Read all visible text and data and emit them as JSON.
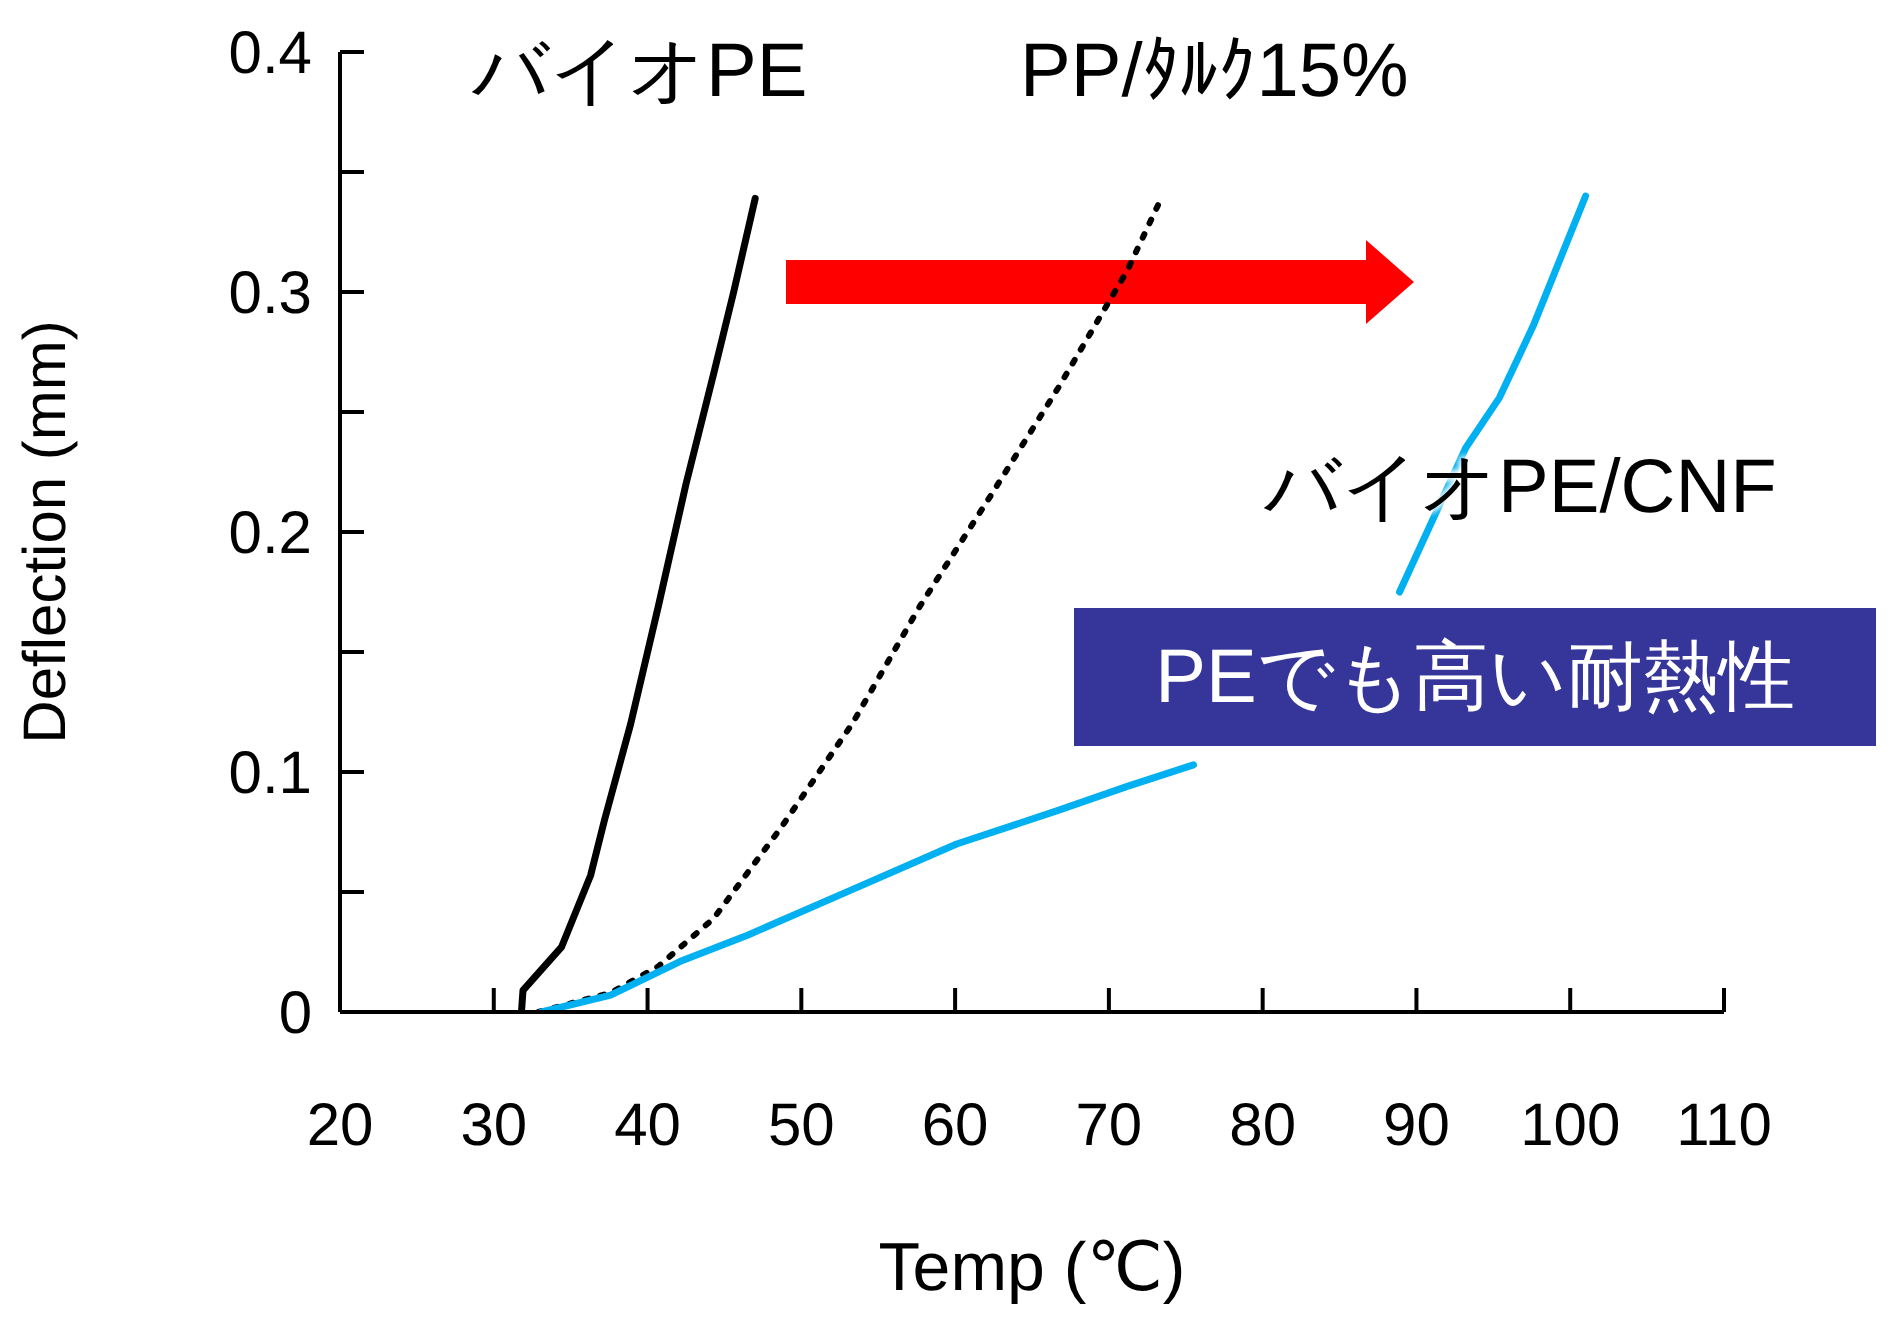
{
  "chart_data": {
    "type": "line",
    "xlabel": "Temp (℃)",
    "ylabel": "Deflection (mm)",
    "xlim": [
      20,
      110
    ],
    "xticks": [
      20,
      30,
      40,
      50,
      60,
      70,
      80,
      90,
      100,
      110
    ],
    "ylim": [
      0,
      0.4
    ],
    "yticks": [
      0,
      {
        "value": 0.05,
        "label": null
      },
      0.1,
      {
        "value": 0.15,
        "label": null
      },
      0.2,
      {
        "value": 0.25,
        "label": null
      },
      0.3,
      {
        "value": 0.35,
        "label": null
      },
      0.4
    ],
    "series": [
      {
        "name": "バイオPE",
        "color": "#000000",
        "line_style": "solid",
        "x": [
          31.8,
          31.9,
          34.4,
          36.3,
          37.2,
          38.9,
          40.7,
          42.5,
          44.3,
          45.6,
          47.0
        ],
        "values": [
          0,
          0.009,
          0.027,
          0.057,
          0.08,
          0.12,
          0.169,
          0.22,
          0.266,
          0.3,
          0.339
        ]
      },
      {
        "name": "PP/ﾀﾙｸ15%",
        "color": "#000000",
        "line_style": "dotted",
        "x": [
          32.9,
          37.6,
          40.7,
          44.3,
          48.7,
          53.3,
          57.7,
          62.3,
          66.7,
          71.2,
          73.4
        ],
        "values": [
          0,
          0.008,
          0.019,
          0.039,
          0.077,
          0.12,
          0.169,
          0.215,
          0.26,
          0.309,
          0.339
        ]
      },
      {
        "name": "バイオPE/CNF",
        "color": "#00b0f0",
        "line_style": "solid",
        "x": [
          33.1,
          37.6,
          42.1,
          46.5,
          53.3,
          60.1,
          66.7,
          71.2,
          75.5,
          82,
          88.9,
          93.2,
          95.4,
          97.6,
          101.0
        ],
        "values": [
          0,
          0.007,
          0.021,
          0.032,
          0.051,
          0.07,
          0.084,
          0.094,
          0.103,
          null,
          0.175,
          0.235,
          0.256,
          0.286,
          0.34
        ]
      }
    ],
    "annotations": [
      "PEでも高い耐熱性"
    ]
  }
}
